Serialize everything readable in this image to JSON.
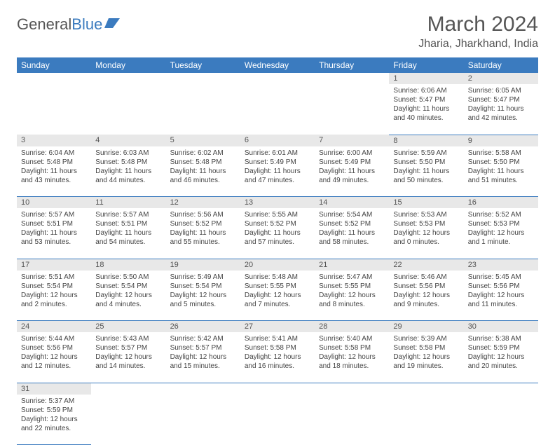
{
  "brand": {
    "part1": "General",
    "part2": "Blue"
  },
  "title": "March 2024",
  "location": "Jharia, Jharkhand, India",
  "colors": {
    "header_bg": "#3b7bbf",
    "header_text": "#ffffff",
    "daynum_bg": "#e8e8e8",
    "border": "#3b7bbf",
    "text": "#444444"
  },
  "dayHeaders": [
    "Sunday",
    "Monday",
    "Tuesday",
    "Wednesday",
    "Thursday",
    "Friday",
    "Saturday"
  ],
  "weeks": [
    [
      null,
      null,
      null,
      null,
      null,
      {
        "n": "1",
        "sr": "Sunrise: 6:06 AM",
        "ss": "Sunset: 5:47 PM",
        "dl": "Daylight: 11 hours and 40 minutes."
      },
      {
        "n": "2",
        "sr": "Sunrise: 6:05 AM",
        "ss": "Sunset: 5:47 PM",
        "dl": "Daylight: 11 hours and 42 minutes."
      }
    ],
    [
      {
        "n": "3",
        "sr": "Sunrise: 6:04 AM",
        "ss": "Sunset: 5:48 PM",
        "dl": "Daylight: 11 hours and 43 minutes."
      },
      {
        "n": "4",
        "sr": "Sunrise: 6:03 AM",
        "ss": "Sunset: 5:48 PM",
        "dl": "Daylight: 11 hours and 44 minutes."
      },
      {
        "n": "5",
        "sr": "Sunrise: 6:02 AM",
        "ss": "Sunset: 5:48 PM",
        "dl": "Daylight: 11 hours and 46 minutes."
      },
      {
        "n": "6",
        "sr": "Sunrise: 6:01 AM",
        "ss": "Sunset: 5:49 PM",
        "dl": "Daylight: 11 hours and 47 minutes."
      },
      {
        "n": "7",
        "sr": "Sunrise: 6:00 AM",
        "ss": "Sunset: 5:49 PM",
        "dl": "Daylight: 11 hours and 49 minutes."
      },
      {
        "n": "8",
        "sr": "Sunrise: 5:59 AM",
        "ss": "Sunset: 5:50 PM",
        "dl": "Daylight: 11 hours and 50 minutes."
      },
      {
        "n": "9",
        "sr": "Sunrise: 5:58 AM",
        "ss": "Sunset: 5:50 PM",
        "dl": "Daylight: 11 hours and 51 minutes."
      }
    ],
    [
      {
        "n": "10",
        "sr": "Sunrise: 5:57 AM",
        "ss": "Sunset: 5:51 PM",
        "dl": "Daylight: 11 hours and 53 minutes."
      },
      {
        "n": "11",
        "sr": "Sunrise: 5:57 AM",
        "ss": "Sunset: 5:51 PM",
        "dl": "Daylight: 11 hours and 54 minutes."
      },
      {
        "n": "12",
        "sr": "Sunrise: 5:56 AM",
        "ss": "Sunset: 5:52 PM",
        "dl": "Daylight: 11 hours and 55 minutes."
      },
      {
        "n": "13",
        "sr": "Sunrise: 5:55 AM",
        "ss": "Sunset: 5:52 PM",
        "dl": "Daylight: 11 hours and 57 minutes."
      },
      {
        "n": "14",
        "sr": "Sunrise: 5:54 AM",
        "ss": "Sunset: 5:52 PM",
        "dl": "Daylight: 11 hours and 58 minutes."
      },
      {
        "n": "15",
        "sr": "Sunrise: 5:53 AM",
        "ss": "Sunset: 5:53 PM",
        "dl": "Daylight: 12 hours and 0 minutes."
      },
      {
        "n": "16",
        "sr": "Sunrise: 5:52 AM",
        "ss": "Sunset: 5:53 PM",
        "dl": "Daylight: 12 hours and 1 minute."
      }
    ],
    [
      {
        "n": "17",
        "sr": "Sunrise: 5:51 AM",
        "ss": "Sunset: 5:54 PM",
        "dl": "Daylight: 12 hours and 2 minutes."
      },
      {
        "n": "18",
        "sr": "Sunrise: 5:50 AM",
        "ss": "Sunset: 5:54 PM",
        "dl": "Daylight: 12 hours and 4 minutes."
      },
      {
        "n": "19",
        "sr": "Sunrise: 5:49 AM",
        "ss": "Sunset: 5:54 PM",
        "dl": "Daylight: 12 hours and 5 minutes."
      },
      {
        "n": "20",
        "sr": "Sunrise: 5:48 AM",
        "ss": "Sunset: 5:55 PM",
        "dl": "Daylight: 12 hours and 7 minutes."
      },
      {
        "n": "21",
        "sr": "Sunrise: 5:47 AM",
        "ss": "Sunset: 5:55 PM",
        "dl": "Daylight: 12 hours and 8 minutes."
      },
      {
        "n": "22",
        "sr": "Sunrise: 5:46 AM",
        "ss": "Sunset: 5:56 PM",
        "dl": "Daylight: 12 hours and 9 minutes."
      },
      {
        "n": "23",
        "sr": "Sunrise: 5:45 AM",
        "ss": "Sunset: 5:56 PM",
        "dl": "Daylight: 12 hours and 11 minutes."
      }
    ],
    [
      {
        "n": "24",
        "sr": "Sunrise: 5:44 AM",
        "ss": "Sunset: 5:56 PM",
        "dl": "Daylight: 12 hours and 12 minutes."
      },
      {
        "n": "25",
        "sr": "Sunrise: 5:43 AM",
        "ss": "Sunset: 5:57 PM",
        "dl": "Daylight: 12 hours and 14 minutes."
      },
      {
        "n": "26",
        "sr": "Sunrise: 5:42 AM",
        "ss": "Sunset: 5:57 PM",
        "dl": "Daylight: 12 hours and 15 minutes."
      },
      {
        "n": "27",
        "sr": "Sunrise: 5:41 AM",
        "ss": "Sunset: 5:58 PM",
        "dl": "Daylight: 12 hours and 16 minutes."
      },
      {
        "n": "28",
        "sr": "Sunrise: 5:40 AM",
        "ss": "Sunset: 5:58 PM",
        "dl": "Daylight: 12 hours and 18 minutes."
      },
      {
        "n": "29",
        "sr": "Sunrise: 5:39 AM",
        "ss": "Sunset: 5:58 PM",
        "dl": "Daylight: 12 hours and 19 minutes."
      },
      {
        "n": "30",
        "sr": "Sunrise: 5:38 AM",
        "ss": "Sunset: 5:59 PM",
        "dl": "Daylight: 12 hours and 20 minutes."
      }
    ],
    [
      {
        "n": "31",
        "sr": "Sunrise: 5:37 AM",
        "ss": "Sunset: 5:59 PM",
        "dl": "Daylight: 12 hours and 22 minutes."
      },
      null,
      null,
      null,
      null,
      null,
      null
    ]
  ]
}
